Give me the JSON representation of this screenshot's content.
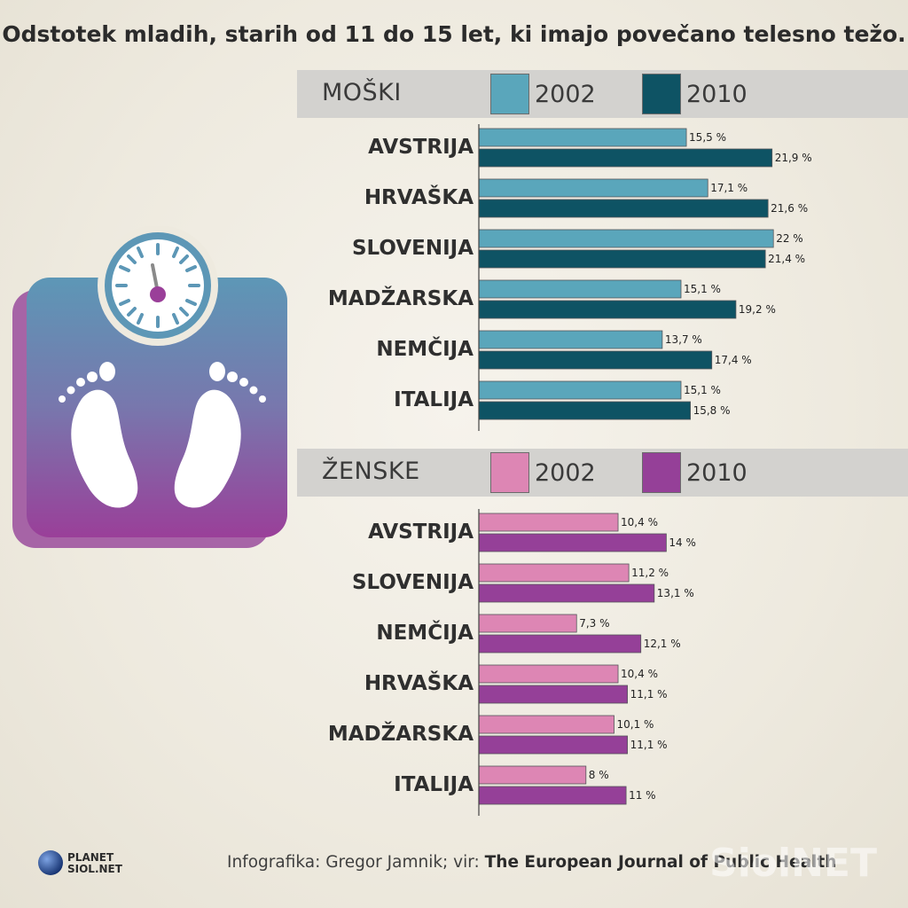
{
  "title": "Odstotek mladih, starih od 11 do 15 let, ki imajo povečano telesno težo.",
  "colors": {
    "boys_2002": "#5aa6bb",
    "boys_2010": "#0e5364",
    "girls_2002": "#dd86b4",
    "girls_2010": "#954098",
    "header_bg": "#d3d2cf"
  },
  "boys_panel": {
    "label": "MOŠKI",
    "legend": [
      "2002",
      "2010"
    ]
  },
  "girls_panel": {
    "label": "ŽENSKE",
    "legend": [
      "2002",
      "2010"
    ]
  },
  "chart_data": [
    {
      "type": "bar",
      "orientation": "horizontal",
      "title": "MOŠKI",
      "categories": [
        "AVSTRIJA",
        "HRVAŠKA",
        "SLOVENIJA",
        "MADŽARSKA",
        "NEMČIJA",
        "ITALIJA"
      ],
      "series": [
        {
          "name": "2002",
          "values": [
            15.5,
            17.1,
            22,
            15.1,
            13.7,
            15.1
          ],
          "labels": [
            "15,5 %",
            "17,1 %",
            "22 %",
            "15,1 %",
            "13,7 %",
            "15,1 %"
          ]
        },
        {
          "name": "2010",
          "values": [
            21.9,
            21.6,
            21.4,
            19.2,
            17.4,
            15.8
          ],
          "labels": [
            "21,9 %",
            "21,6 %",
            "21,4 %",
            "19,2 %",
            "17,4 %",
            "15,8 %"
          ]
        }
      ]
    },
    {
      "type": "bar",
      "orientation": "horizontal",
      "title": "ŽENSKE",
      "categories": [
        "AVSTRIJA",
        "SLOVENIJA",
        "NEMČIJA",
        "HRVAŠKA",
        "MADŽARSKA",
        "ITALIJA"
      ],
      "series": [
        {
          "name": "2002",
          "values": [
            10.4,
            11.2,
            7.3,
            10.4,
            10.1,
            8
          ],
          "labels": [
            "10,4 %",
            "11,2 %",
            "7,3 %",
            "10,4 %",
            "10,1 %",
            "8 %"
          ]
        },
        {
          "name": "2010",
          "values": [
            14,
            13.1,
            12.1,
            11.1,
            11.1,
            11
          ],
          "labels": [
            "14 %",
            "13,1 %",
            "12,1 %",
            "11,1 %",
            "11,1 %",
            "11 %"
          ]
        }
      ]
    }
  ],
  "icon": "bathroom-scale-icon",
  "brand": {
    "line1": "PLANET",
    "line2": "SIOL.NET"
  },
  "credit": {
    "prefix": "Infografika: Gregor Jamnik; vir: ",
    "source": "The European Journal of Public Health"
  },
  "watermark": "SiolNET"
}
